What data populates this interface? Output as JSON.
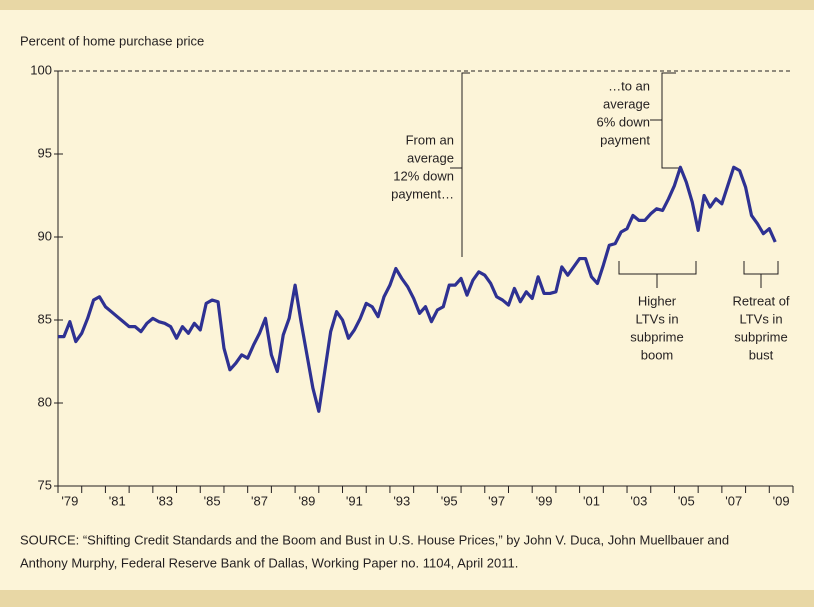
{
  "chart_data": {
    "type": "line",
    "y_label": "Percent of home purchase price",
    "x": [
      1979,
      1979.25,
      1979.5,
      1979.75,
      1980,
      1980.25,
      1980.5,
      1980.75,
      1981,
      1981.25,
      1981.5,
      1981.75,
      1982,
      1982.25,
      1982.5,
      1982.75,
      1983,
      1983.25,
      1983.5,
      1983.75,
      1984,
      1984.25,
      1984.5,
      1984.75,
      1985,
      1985.25,
      1985.5,
      1985.75,
      1986,
      1986.25,
      1986.5,
      1986.75,
      1987,
      1987.25,
      1987.5,
      1987.75,
      1988,
      1988.25,
      1988.5,
      1988.75,
      1989,
      1989.25,
      1989.5,
      1989.75,
      1990,
      1990.25,
      1990.5,
      1990.75,
      1991,
      1991.25,
      1991.5,
      1991.75,
      1992,
      1992.25,
      1992.5,
      1992.75,
      1993,
      1993.25,
      1993.5,
      1993.75,
      1994,
      1994.25,
      1994.5,
      1994.75,
      1995,
      1995.25,
      1995.5,
      1995.75,
      1996,
      1996.25,
      1996.5,
      1996.75,
      1997,
      1997.25,
      1997.5,
      1997.75,
      1998,
      1998.25,
      1998.5,
      1998.75,
      1999,
      1999.25,
      1999.5,
      1999.75,
      2000,
      2000.25,
      2000.5,
      2000.75,
      2001,
      2001.25,
      2001.5,
      2001.75,
      2002,
      2002.25,
      2002.5,
      2002.75,
      2003,
      2003.25,
      2003.5,
      2003.75,
      2004,
      2004.25,
      2004.5,
      2004.75,
      2005,
      2005.25,
      2005.5,
      2005.75,
      2006,
      2006.25,
      2006.5,
      2006.75,
      2007,
      2007.25,
      2007.5,
      2007.75,
      2008,
      2008.25,
      2008.5,
      2008.75,
      2009,
      2009.25
    ],
    "series": [
      {
        "color": "#2e3192",
        "values": [
          84.0,
          84.0,
          84.9,
          83.7,
          84.2,
          85.1,
          86.2,
          86.4,
          85.8,
          85.5,
          85.2,
          84.9,
          84.6,
          84.6,
          84.3,
          84.8,
          85.1,
          84.9,
          84.8,
          84.6,
          83.9,
          84.6,
          84.2,
          84.8,
          84.4,
          86.0,
          86.2,
          86.1,
          83.3,
          82.0,
          82.4,
          82.9,
          82.7,
          83.5,
          84.2,
          85.1,
          82.9,
          81.9,
          84.1,
          85.1,
          87.1,
          84.9,
          82.9,
          80.9,
          79.5,
          81.9,
          84.3,
          85.5,
          85.0,
          83.9,
          84.4,
          85.1,
          86.0,
          85.8,
          85.2,
          86.4,
          87.1,
          88.1,
          87.5,
          87.0,
          86.3,
          85.4,
          85.8,
          84.9,
          85.6,
          85.8,
          87.1,
          87.1,
          87.5,
          86.5,
          87.4,
          87.9,
          87.7,
          87.2,
          86.4,
          86.2,
          85.9,
          86.9,
          86.1,
          86.7,
          86.3,
          87.6,
          86.6,
          86.6,
          86.7,
          88.2,
          87.7,
          88.2,
          88.7,
          88.7,
          87.6,
          87.2,
          88.3,
          89.5,
          89.6,
          90.3,
          90.5,
          91.3,
          91.0,
          91.0,
          91.4,
          91.7,
          91.6,
          92.3,
          93.1,
          94.2,
          93.3,
          92.1,
          90.4,
          92.5,
          91.8,
          92.3,
          92.0,
          93.1,
          94.2,
          94.0,
          93.0,
          91.3,
          90.8,
          90.2,
          90.5,
          89.7
        ]
      }
    ],
    "xlim": [
      1979,
      2010
    ],
    "xticks": [
      {
        "value": 1979.5,
        "label": "'79"
      },
      {
        "value": 1981.5,
        "label": "'81"
      },
      {
        "value": 1983.5,
        "label": "'83"
      },
      {
        "value": 1985.5,
        "label": "'85"
      },
      {
        "value": 1987.5,
        "label": "'87"
      },
      {
        "value": 1989.5,
        "label": "'89"
      },
      {
        "value": 1991.5,
        "label": "'91"
      },
      {
        "value": 1993.5,
        "label": "'93"
      },
      {
        "value": 1995.5,
        "label": "'95"
      },
      {
        "value": 1997.5,
        "label": "'97"
      },
      {
        "value": 1999.5,
        "label": "'99"
      },
      {
        "value": 2001.5,
        "label": "'01"
      },
      {
        "value": 2003.5,
        "label": "'03"
      },
      {
        "value": 2005.5,
        "label": "'05"
      },
      {
        "value": 2007.5,
        "label": "'07"
      },
      {
        "value": 2009.5,
        "label": "'09"
      }
    ],
    "ylim": [
      75,
      100
    ],
    "yticks": [
      75,
      80,
      85,
      90,
      95,
      100
    ],
    "annotations": [
      {
        "lines": [
          "From an",
          "average",
          "12% down",
          "payment…"
        ]
      },
      {
        "lines": [
          "…to an",
          "average",
          "6% down",
          "payment"
        ]
      },
      {
        "lines": [
          "Higher",
          "LTVs in",
          "subprime",
          "boom"
        ]
      },
      {
        "lines": [
          "Retreat of",
          "LTVs in",
          "subprime",
          "bust"
        ]
      }
    ],
    "source": [
      "SOURCE: “Shifting Credit Standards and the Boom and Bust in U.S. House Prices,” by John V. Duca, John Muellbauer and",
      "Anthony Murphy, Federal Reserve Bank of Dallas, Working Paper no. 1104, April 2011."
    ]
  }
}
